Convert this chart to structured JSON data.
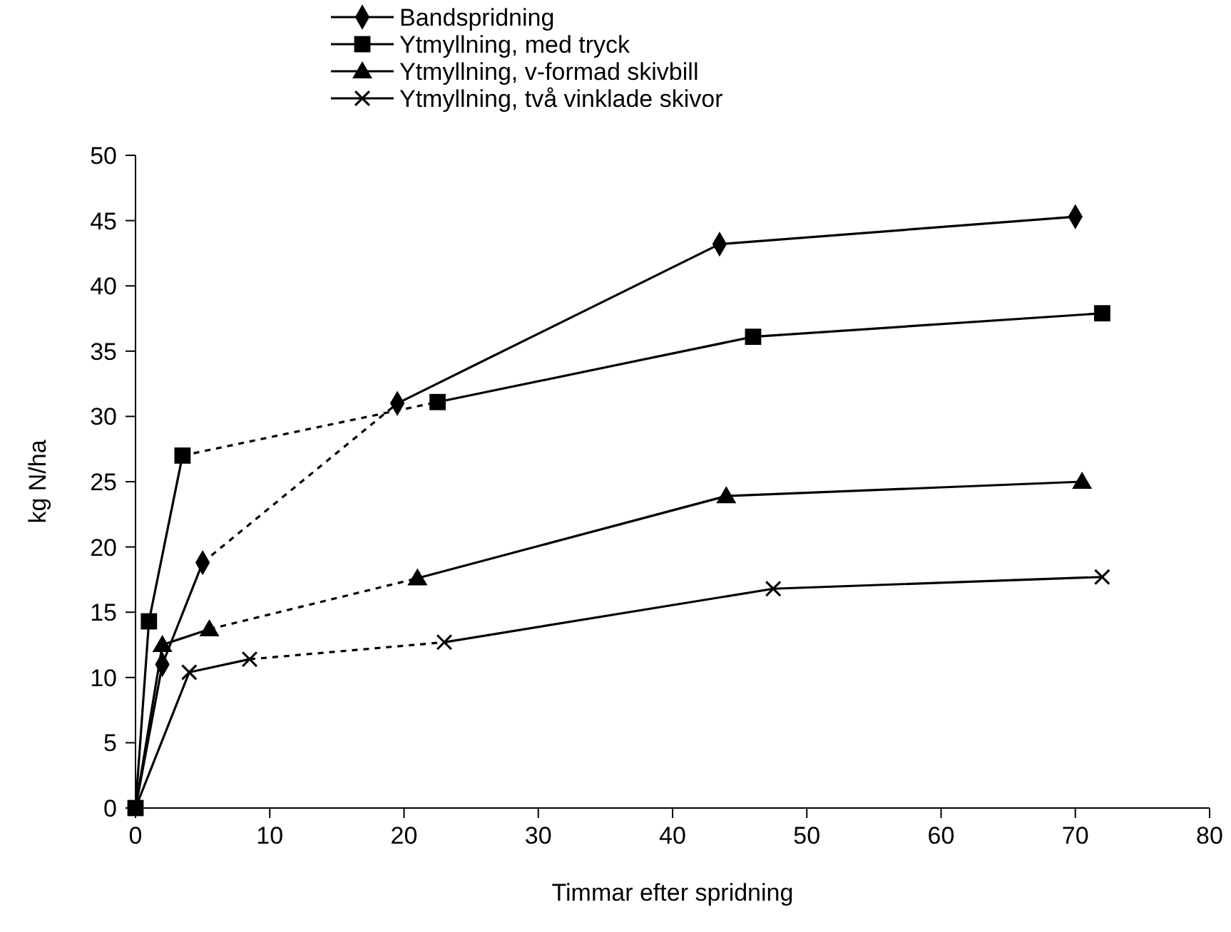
{
  "chart_data": {
    "type": "line",
    "xlabel": "Timmar efter spridning",
    "ylabel": "kg N/ha",
    "xlim": [
      0,
      80
    ],
    "xticks": [
      0,
      10,
      20,
      30,
      40,
      50,
      60,
      70,
      80
    ],
    "ylim": [
      0,
      50
    ],
    "yticks": [
      0,
      5,
      10,
      15,
      20,
      25,
      30,
      35,
      40,
      45,
      50
    ],
    "grid": false,
    "legend": "top",
    "line_style": "solid",
    "series": [
      {
        "color": "#000000",
        "x": [
          0,
          2,
          5
        ],
        "values": [
          0,
          11,
          18.8
        ]
      },
      {
        "color": "#000000",
        "x": [
          0,
          1,
          3.5
        ],
        "values": [
          0,
          14.3,
          27
        ]
      },
      {
        "color": "#000000",
        "x": [
          0,
          2,
          5.5
        ],
        "values": [
          0,
          12.5,
          13.7
        ]
      },
      {
        "color": "#000000",
        "x": [
          0,
          4,
          8.5
        ],
        "values": [
          0,
          10.4,
          11.4
        ]
      },
      {
        "color": "#000000",
        "line_style": "dotted",
        "x": [
          5,
          19.5
        ],
        "values": [
          18.8,
          31
        ]
      },
      {
        "color": "#000000",
        "line_style": "dotted",
        "x": [
          3.5,
          22.5
        ],
        "values": [
          27,
          31.1
        ]
      },
      {
        "color": "#000000",
        "line_style": "dotted",
        "x": [
          5.5,
          21
        ],
        "values": [
          13.7,
          17.6
        ]
      },
      {
        "color": "#000000",
        "line_style": "dotted",
        "x": [
          8.5,
          23
        ],
        "values": [
          11.4,
          12.7
        ]
      },
      {
        "color": "#000000",
        "x": [
          19.5,
          43.5,
          70
        ],
        "values": [
          31,
          43.2,
          45.3
        ]
      },
      {
        "color": "#000000",
        "x": [
          22.5,
          46,
          72
        ],
        "values": [
          31.1,
          36.1,
          37.9
        ]
      },
      {
        "color": "#000000",
        "x": [
          21,
          44,
          70.5
        ],
        "values": [
          17.6,
          23.9,
          25
        ]
      },
      {
        "color": "#000000",
        "x": [
          23,
          47.5,
          72
        ],
        "values": [
          12.7,
          16.8,
          17.7
        ]
      },
      {
        "type": "scatter",
        "name": "Bandspridning",
        "color": "#000000",
        "marker": "diamond",
        "x": [
          2,
          5,
          19.5,
          43.5,
          70
        ],
        "values": [
          11,
          18.8,
          31,
          43.2,
          45.3
        ]
      },
      {
        "type": "scatter",
        "name": "Ytmyllning, med tryck",
        "color": "#000000",
        "marker": "square",
        "x": [
          0,
          1,
          3.5,
          22.5,
          46,
          72
        ],
        "values": [
          0,
          14.3,
          27,
          31.1,
          36.1,
          37.9
        ]
      },
      {
        "type": "scatter",
        "name": "Ytmyllning, v-formad skivbill",
        "color": "#000000",
        "marker": "triangle",
        "x": [
          2,
          5.5,
          21,
          44,
          70.5
        ],
        "values": [
          12.5,
          13.7,
          17.6,
          23.9,
          25
        ]
      },
      {
        "type": "scatter",
        "name": "Ytmyllning, två vinklade skivor",
        "color": "#000000",
        "marker": "cross",
        "x": [
          4,
          8.5,
          23,
          47.5,
          72
        ],
        "values": [
          10.4,
          11.4,
          12.7,
          16.8,
          17.7
        ]
      }
    ]
  }
}
